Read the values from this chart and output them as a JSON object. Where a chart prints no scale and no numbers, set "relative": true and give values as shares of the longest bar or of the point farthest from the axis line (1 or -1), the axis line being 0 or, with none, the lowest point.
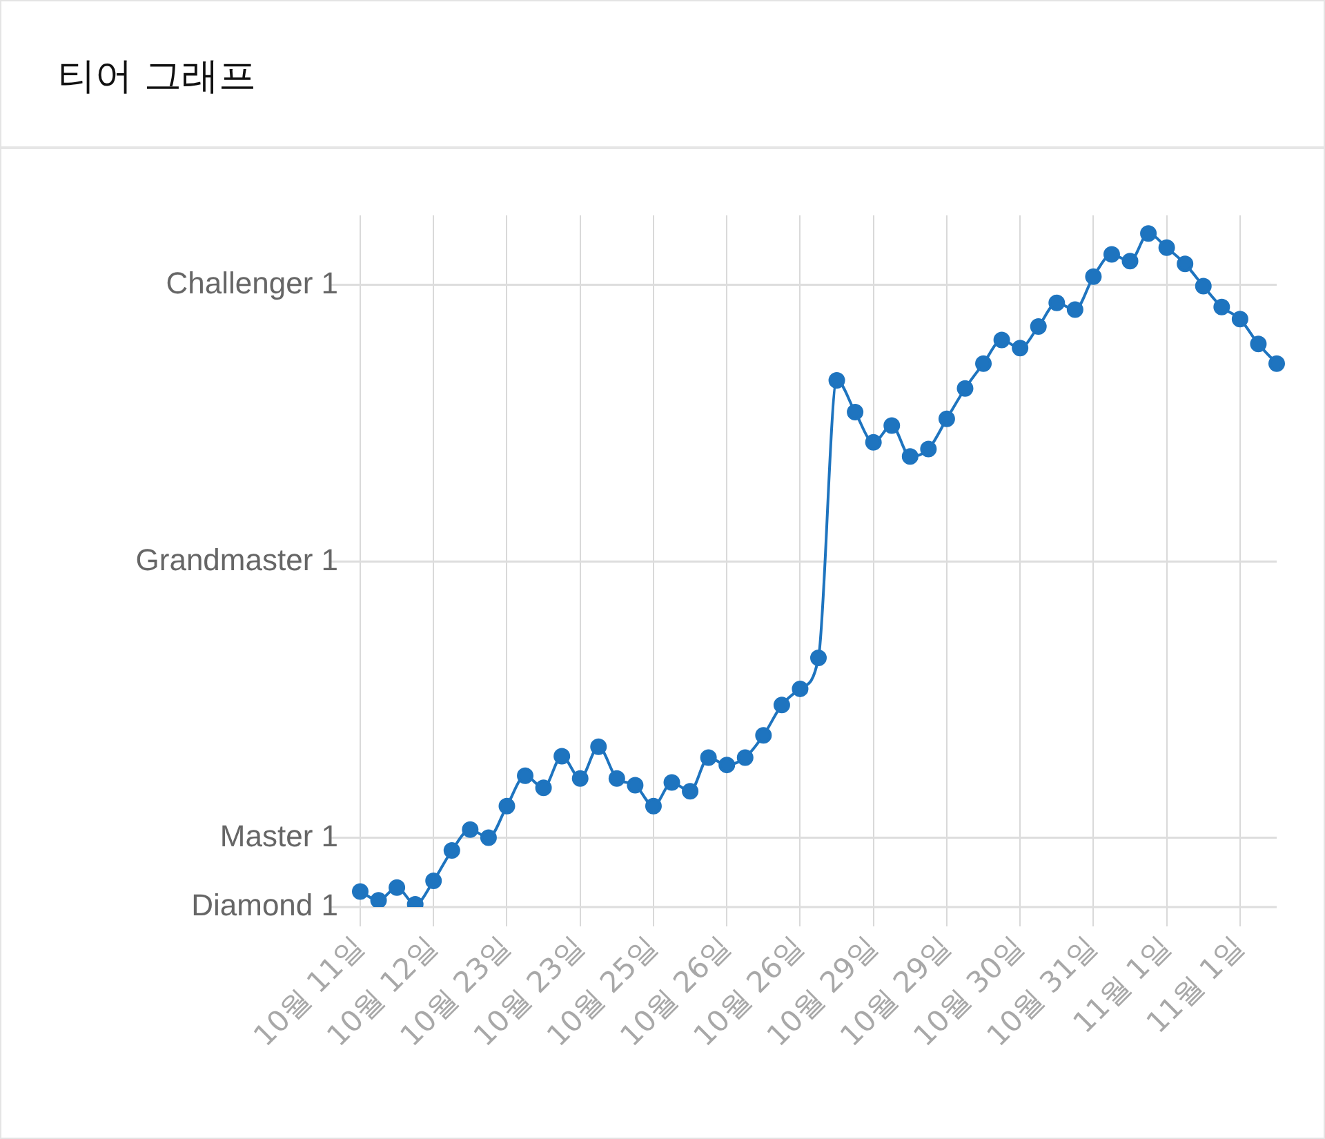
{
  "chart_data": {
    "type": "line",
    "title": "티어 그래프",
    "relative": true,
    "categories": [
      "10월 11일",
      null,
      null,
      null,
      "10월 12일",
      null,
      null,
      null,
      "10월 23일",
      null,
      null,
      null,
      "10월 23일",
      null,
      null,
      null,
      "10월 25일",
      null,
      null,
      null,
      "10월 26일",
      null,
      null,
      null,
      "10월 26일",
      null,
      null,
      null,
      "10월 29일",
      null,
      null,
      null,
      "10월 29일",
      null,
      null,
      null,
      "10월 30일",
      null,
      null,
      null,
      "10월 31일",
      null,
      null,
      null,
      "11월 1일",
      null,
      null,
      null,
      "11월 1일",
      null,
      null
    ],
    "series": [
      {
        "color": "#1e74bf",
        "values": [
          0.023,
          0.01,
          0.029,
          0.004,
          0.039,
          0.084,
          0.115,
          0.103,
          0.15,
          0.195,
          0.177,
          0.224,
          0.191,
          0.238,
          0.191,
          0.181,
          0.15,
          0.185,
          0.172,
          0.222,
          0.211,
          0.222,
          0.255,
          0.3,
          0.324,
          0.37,
          0.782,
          0.735,
          0.69,
          0.715,
          0.669,
          0.68,
          0.725,
          0.77,
          0.807,
          0.842,
          0.83,
          0.862,
          0.897,
          0.887,
          0.936,
          0.969,
          0.959,
          1,
          0.979,
          0.955,
          0.922,
          0.891,
          0.873,
          0.836,
          0.807
        ]
      }
    ],
    "ref_lines": [
      {
        "axis": "y",
        "value": 0,
        "label": "Diamond 1"
      },
      {
        "axis": "y",
        "value": 0.103,
        "label": "Master 1"
      },
      {
        "axis": "y",
        "value": 0.513,
        "label": "Grandmaster 1"
      },
      {
        "axis": "y",
        "value": 0.924,
        "label": "Challenger 1"
      }
    ],
    "grid": "x",
    "marker": "circle",
    "line_style": "solid"
  }
}
